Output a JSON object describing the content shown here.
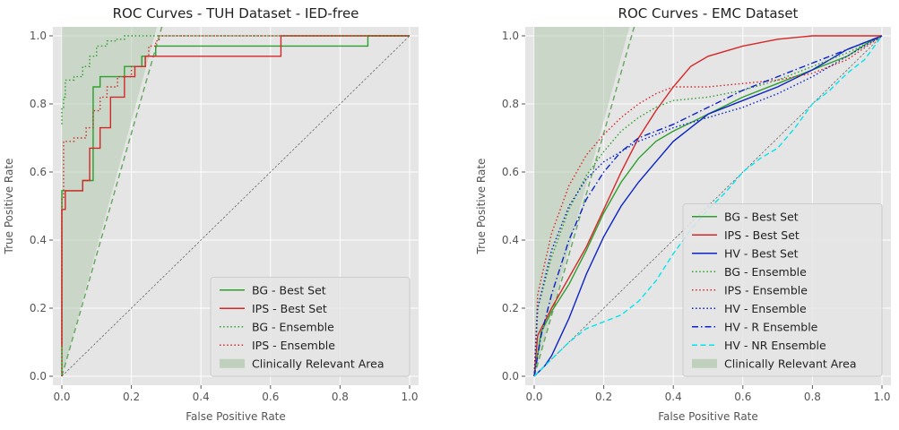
{
  "chart_data": [
    {
      "type": "line",
      "title": "ROC Curves - TUH Dataset - IED-free",
      "xlabel": "False Positive Rate",
      "ylabel": "True Positive Rate",
      "xlim": [
        0,
        1
      ],
      "ylim": [
        0,
        1
      ],
      "xticks": [
        "0.0",
        "0.2",
        "0.4",
        "0.6",
        "0.8",
        "1.0"
      ],
      "yticks": [
        "0.0",
        "0.2",
        "0.4",
        "0.6",
        "0.8",
        "1.0"
      ],
      "grid": true,
      "legend_position": "bottom-right",
      "clinical_area": {
        "label": "Clinically Relevant Area",
        "slope": 3.57
      },
      "series": [
        {
          "name": "BG - Best Set",
          "color": "#2ca02c",
          "dash": "solid",
          "x": [
            0,
            0,
            0.06,
            0.06,
            0.07,
            0.07,
            0.09,
            0.09,
            0.11,
            0.11,
            0.18,
            0.18,
            0.23,
            0.23,
            0.27,
            0.27,
            0.84,
            0.84,
            0.88,
            0.88,
            1.0
          ],
          "y": [
            0,
            0.545,
            0.545,
            0.575,
            0.575,
            0.575,
            0.575,
            0.85,
            0.85,
            0.88,
            0.88,
            0.91,
            0.91,
            0.94,
            0.94,
            0.97,
            0.97,
            0.97,
            0.97,
            1.0,
            1.0
          ]
        },
        {
          "name": "IPS - Best Set",
          "color": "#d62728",
          "dash": "solid",
          "x": [
            0,
            0,
            0.01,
            0.01,
            0.02,
            0.02,
            0.06,
            0.06,
            0.08,
            0.08,
            0.11,
            0.11,
            0.14,
            0.14,
            0.18,
            0.18,
            0.21,
            0.21,
            0.24,
            0.24,
            0.26,
            0.26,
            0.63,
            0.63,
            1.0
          ],
          "y": [
            0.09,
            0.49,
            0.49,
            0.545,
            0.545,
            0.545,
            0.545,
            0.575,
            0.575,
            0.67,
            0.67,
            0.73,
            0.73,
            0.82,
            0.82,
            0.88,
            0.88,
            0.91,
            0.91,
            0.94,
            0.94,
            0.94,
            0.94,
            1.0,
            1.0
          ]
        },
        {
          "name": "BG - Ensemble",
          "color": "#2ca02c",
          "dash": "dotted",
          "x": [
            0,
            0,
            0.005,
            0.005,
            0.01,
            0.01,
            0.035,
            0.035,
            0.06,
            0.06,
            0.08,
            0.08,
            0.1,
            0.1,
            0.13,
            0.13,
            0.155,
            0.155,
            0.18,
            0.18,
            1.0
          ],
          "y": [
            0.74,
            0.79,
            0.79,
            0.82,
            0.82,
            0.87,
            0.87,
            0.88,
            0.88,
            0.91,
            0.91,
            0.94,
            0.94,
            0.97,
            0.97,
            0.985,
            0.985,
            0.99,
            0.99,
            1.0,
            1.0
          ]
        },
        {
          "name": "IPS - Ensemble",
          "color": "#d62728",
          "dash": "dotted",
          "x": [
            0,
            0,
            0.005,
            0.005,
            0.035,
            0.035,
            0.07,
            0.07,
            0.09,
            0.09,
            0.11,
            0.11,
            0.13,
            0.13,
            0.16,
            0.16,
            0.2,
            0.2,
            0.24,
            0.24,
            0.25,
            0.25,
            0.27,
            0.27,
            0.28,
            0.28,
            1.0
          ],
          "y": [
            0,
            0.52,
            0.52,
            0.69,
            0.69,
            0.7,
            0.7,
            0.73,
            0.73,
            0.78,
            0.78,
            0.82,
            0.82,
            0.85,
            0.85,
            0.88,
            0.88,
            0.91,
            0.91,
            0.94,
            0.94,
            0.97,
            0.97,
            0.985,
            0.985,
            1.0,
            1.0
          ]
        }
      ]
    },
    {
      "type": "line",
      "title": "ROC Curves - EMC Dataset",
      "xlabel": "False Positive Rate",
      "ylabel": "True Positive Rate",
      "xlim": [
        0,
        1
      ],
      "ylim": [
        0,
        1
      ],
      "xticks": [
        "0.0",
        "0.2",
        "0.4",
        "0.6",
        "0.8",
        "1.0"
      ],
      "yticks": [
        "0.0",
        "0.2",
        "0.4",
        "0.6",
        "0.8",
        "1.0"
      ],
      "grid": true,
      "legend_position": "bottom-right",
      "clinical_area": {
        "label": "Clinically Relevant Area",
        "slope": 3.57
      },
      "series": [
        {
          "name": "BG - Best Set",
          "color": "#2ca02c",
          "dash": "solid",
          "x": [
            0.0,
            0.02,
            0.05,
            0.1,
            0.15,
            0.2,
            0.25,
            0.3,
            0.35,
            0.4,
            0.5,
            0.6,
            0.7,
            0.8,
            0.9,
            0.96,
            1.0
          ],
          "y": [
            0.0,
            0.13,
            0.19,
            0.27,
            0.37,
            0.48,
            0.57,
            0.64,
            0.69,
            0.72,
            0.77,
            0.82,
            0.86,
            0.9,
            0.94,
            0.98,
            1.0
          ]
        },
        {
          "name": "IPS - Best Set",
          "color": "#d62728",
          "dash": "solid",
          "x": [
            0.0,
            0.01,
            0.05,
            0.1,
            0.15,
            0.2,
            0.25,
            0.3,
            0.35,
            0.4,
            0.45,
            0.5,
            0.6,
            0.7,
            0.8,
            0.9,
            1.0
          ],
          "y": [
            0.0,
            0.12,
            0.2,
            0.29,
            0.38,
            0.49,
            0.6,
            0.7,
            0.78,
            0.85,
            0.91,
            0.94,
            0.97,
            0.99,
            1.0,
            1.0,
            1.0
          ]
        },
        {
          "name": "HV - Best Set",
          "color": "#0a22c8",
          "dash": "solid",
          "x": [
            0.0,
            0.03,
            0.05,
            0.1,
            0.15,
            0.2,
            0.25,
            0.3,
            0.35,
            0.4,
            0.45,
            0.5,
            0.6,
            0.7,
            0.8,
            0.9,
            1.0
          ],
          "y": [
            0.0,
            0.03,
            0.06,
            0.17,
            0.3,
            0.41,
            0.5,
            0.57,
            0.63,
            0.69,
            0.73,
            0.77,
            0.81,
            0.85,
            0.9,
            0.96,
            1.0
          ]
        },
        {
          "name": "BG - Ensemble",
          "color": "#2ca02c",
          "dash": "dotted",
          "x": [
            0.0,
            0.01,
            0.05,
            0.1,
            0.15,
            0.2,
            0.25,
            0.3,
            0.35,
            0.4,
            0.5,
            0.6,
            0.7,
            0.8,
            0.9,
            1.0
          ],
          "y": [
            0.0,
            0.2,
            0.35,
            0.49,
            0.59,
            0.66,
            0.72,
            0.76,
            0.79,
            0.81,
            0.82,
            0.84,
            0.87,
            0.91,
            0.95,
            1.0
          ]
        },
        {
          "name": "IPS - Ensemble",
          "color": "#d62728",
          "dash": "dotted",
          "x": [
            0.0,
            0.01,
            0.05,
            0.1,
            0.15,
            0.2,
            0.25,
            0.3,
            0.35,
            0.4,
            0.5,
            0.6,
            0.7,
            0.8,
            0.9,
            1.0
          ],
          "y": [
            0.0,
            0.24,
            0.42,
            0.56,
            0.65,
            0.71,
            0.76,
            0.8,
            0.83,
            0.85,
            0.85,
            0.86,
            0.87,
            0.89,
            0.93,
            1.0
          ]
        },
        {
          "name": "HV - Ensemble",
          "color": "#0a22c8",
          "dash": "dotted",
          "x": [
            0.0,
            0.01,
            0.05,
            0.1,
            0.15,
            0.2,
            0.25,
            0.3,
            0.4,
            0.5,
            0.6,
            0.7,
            0.8,
            0.9,
            1.0
          ],
          "y": [
            0.0,
            0.2,
            0.37,
            0.5,
            0.58,
            0.63,
            0.66,
            0.69,
            0.73,
            0.76,
            0.79,
            0.83,
            0.88,
            0.94,
            1.0
          ]
        },
        {
          "name": "HV - R Ensemble",
          "color": "#0a22c8",
          "dash": "dashdot",
          "x": [
            0.0,
            0.02,
            0.05,
            0.1,
            0.15,
            0.2,
            0.25,
            0.3,
            0.35,
            0.4,
            0.5,
            0.6,
            0.7,
            0.8,
            0.9,
            1.0
          ],
          "y": [
            0.0,
            0.12,
            0.24,
            0.4,
            0.52,
            0.6,
            0.66,
            0.7,
            0.72,
            0.74,
            0.79,
            0.84,
            0.88,
            0.92,
            0.96,
            1.0
          ]
        },
        {
          "name": "HV - NR Ensemble",
          "color": "#00e5ee",
          "dash": "dashed",
          "x": [
            0.0,
            0.05,
            0.1,
            0.15,
            0.2,
            0.25,
            0.3,
            0.35,
            0.4,
            0.45,
            0.5,
            0.55,
            0.6,
            0.65,
            0.7,
            0.75,
            0.8,
            0.85,
            0.9,
            0.95,
            1.0
          ],
          "y": [
            0.0,
            0.05,
            0.1,
            0.14,
            0.16,
            0.18,
            0.22,
            0.28,
            0.36,
            0.43,
            0.49,
            0.54,
            0.6,
            0.64,
            0.67,
            0.73,
            0.8,
            0.84,
            0.89,
            0.93,
            1.0
          ]
        }
      ]
    }
  ]
}
